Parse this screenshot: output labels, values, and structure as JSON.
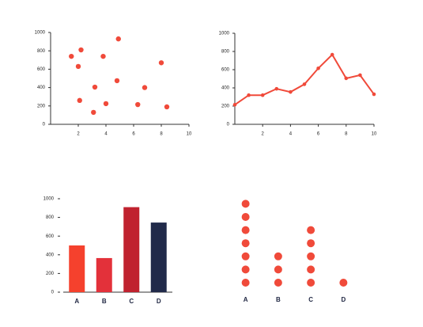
{
  "chart_data": [
    {
      "type": "scatter",
      "color": "#f04a3a",
      "x": [
        1.5,
        2.2,
        2.0,
        3.8,
        4.9,
        3.2,
        4.8,
        2.1,
        4.0,
        3.1,
        6.8,
        6.3,
        8.0,
        8.4
      ],
      "values": [
        740,
        810,
        630,
        740,
        930,
        405,
        475,
        260,
        225,
        130,
        400,
        215,
        670,
        190
      ],
      "xlim": [
        0,
        10
      ],
      "xticks": [
        2,
        4,
        6,
        8,
        10
      ],
      "ylim": [
        0,
        1000
      ],
      "yticks": [
        0,
        200,
        400,
        600,
        800,
        1000
      ]
    },
    {
      "type": "line",
      "color": "#f04a3a",
      "x": [
        0,
        1,
        2,
        3,
        4,
        5,
        6,
        7,
        8,
        9,
        10
      ],
      "values": [
        215,
        320,
        320,
        390,
        355,
        440,
        615,
        765,
        505,
        540,
        330
      ],
      "xlim": [
        0,
        10
      ],
      "xticks": [
        2,
        4,
        6,
        8,
        10
      ],
      "ylim": [
        0,
        1000
      ],
      "yticks": [
        0,
        200,
        400,
        600,
        800,
        1000
      ]
    },
    {
      "type": "bar",
      "categories": [
        "A",
        "B",
        "C",
        "D"
      ],
      "values": [
        500,
        365,
        910,
        745
      ],
      "colors": [
        "#f5412d",
        "#e3313a",
        "#c0222f",
        "#212a4a"
      ],
      "ylim": [
        0,
        1000
      ],
      "yticks": [
        0,
        200,
        400,
        600,
        800,
        1000
      ]
    },
    {
      "type": "dot",
      "color": "#f04a3a",
      "categories": [
        "A",
        "B",
        "C",
        "D"
      ],
      "values": [
        7,
        3,
        5,
        1
      ]
    }
  ]
}
